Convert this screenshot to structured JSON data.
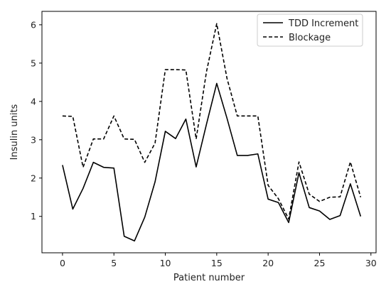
{
  "chart_data": {
    "type": "line",
    "title": "",
    "xlabel": "Patient number",
    "ylabel": "Insulin units",
    "xlim": [
      -2,
      30.5
    ],
    "ylim": [
      0.05,
      6.35
    ],
    "xticks": [
      0,
      5,
      10,
      15,
      20,
      25,
      30
    ],
    "yticks": [
      1,
      2,
      3,
      4,
      5,
      6
    ],
    "grid": false,
    "legend_position": "top-right",
    "x": [
      0,
      1,
      2,
      3,
      4,
      5,
      6,
      7,
      8,
      9,
      10,
      11,
      12,
      13,
      14,
      15,
      16,
      17,
      18,
      19,
      20,
      21,
      22,
      23,
      24,
      25,
      26,
      27,
      28,
      29
    ],
    "series": [
      {
        "name": "TDD Increment",
        "style": "solid",
        "color": "#000000",
        "values": [
          2.34,
          1.19,
          1.73,
          2.41,
          2.28,
          2.26,
          0.48,
          0.36,
          0.98,
          1.9,
          3.22,
          3.03,
          3.54,
          2.29,
          3.4,
          4.47,
          3.56,
          2.59,
          2.59,
          2.63,
          1.45,
          1.36,
          0.84,
          2.14,
          1.23,
          1.14,
          0.92,
          1.02,
          1.85,
          1.0
        ]
      },
      {
        "name": "Blockage",
        "style": "dashed",
        "color": "#000000",
        "values": [
          3.62,
          3.61,
          2.28,
          3.02,
          3.02,
          3.62,
          3.02,
          3.01,
          2.41,
          2.91,
          4.83,
          4.83,
          4.82,
          3.02,
          4.77,
          6.03,
          4.6,
          3.62,
          3.62,
          3.62,
          1.81,
          1.46,
          0.93,
          2.42,
          1.58,
          1.39,
          1.5,
          1.51,
          2.42,
          1.5
        ]
      }
    ]
  }
}
